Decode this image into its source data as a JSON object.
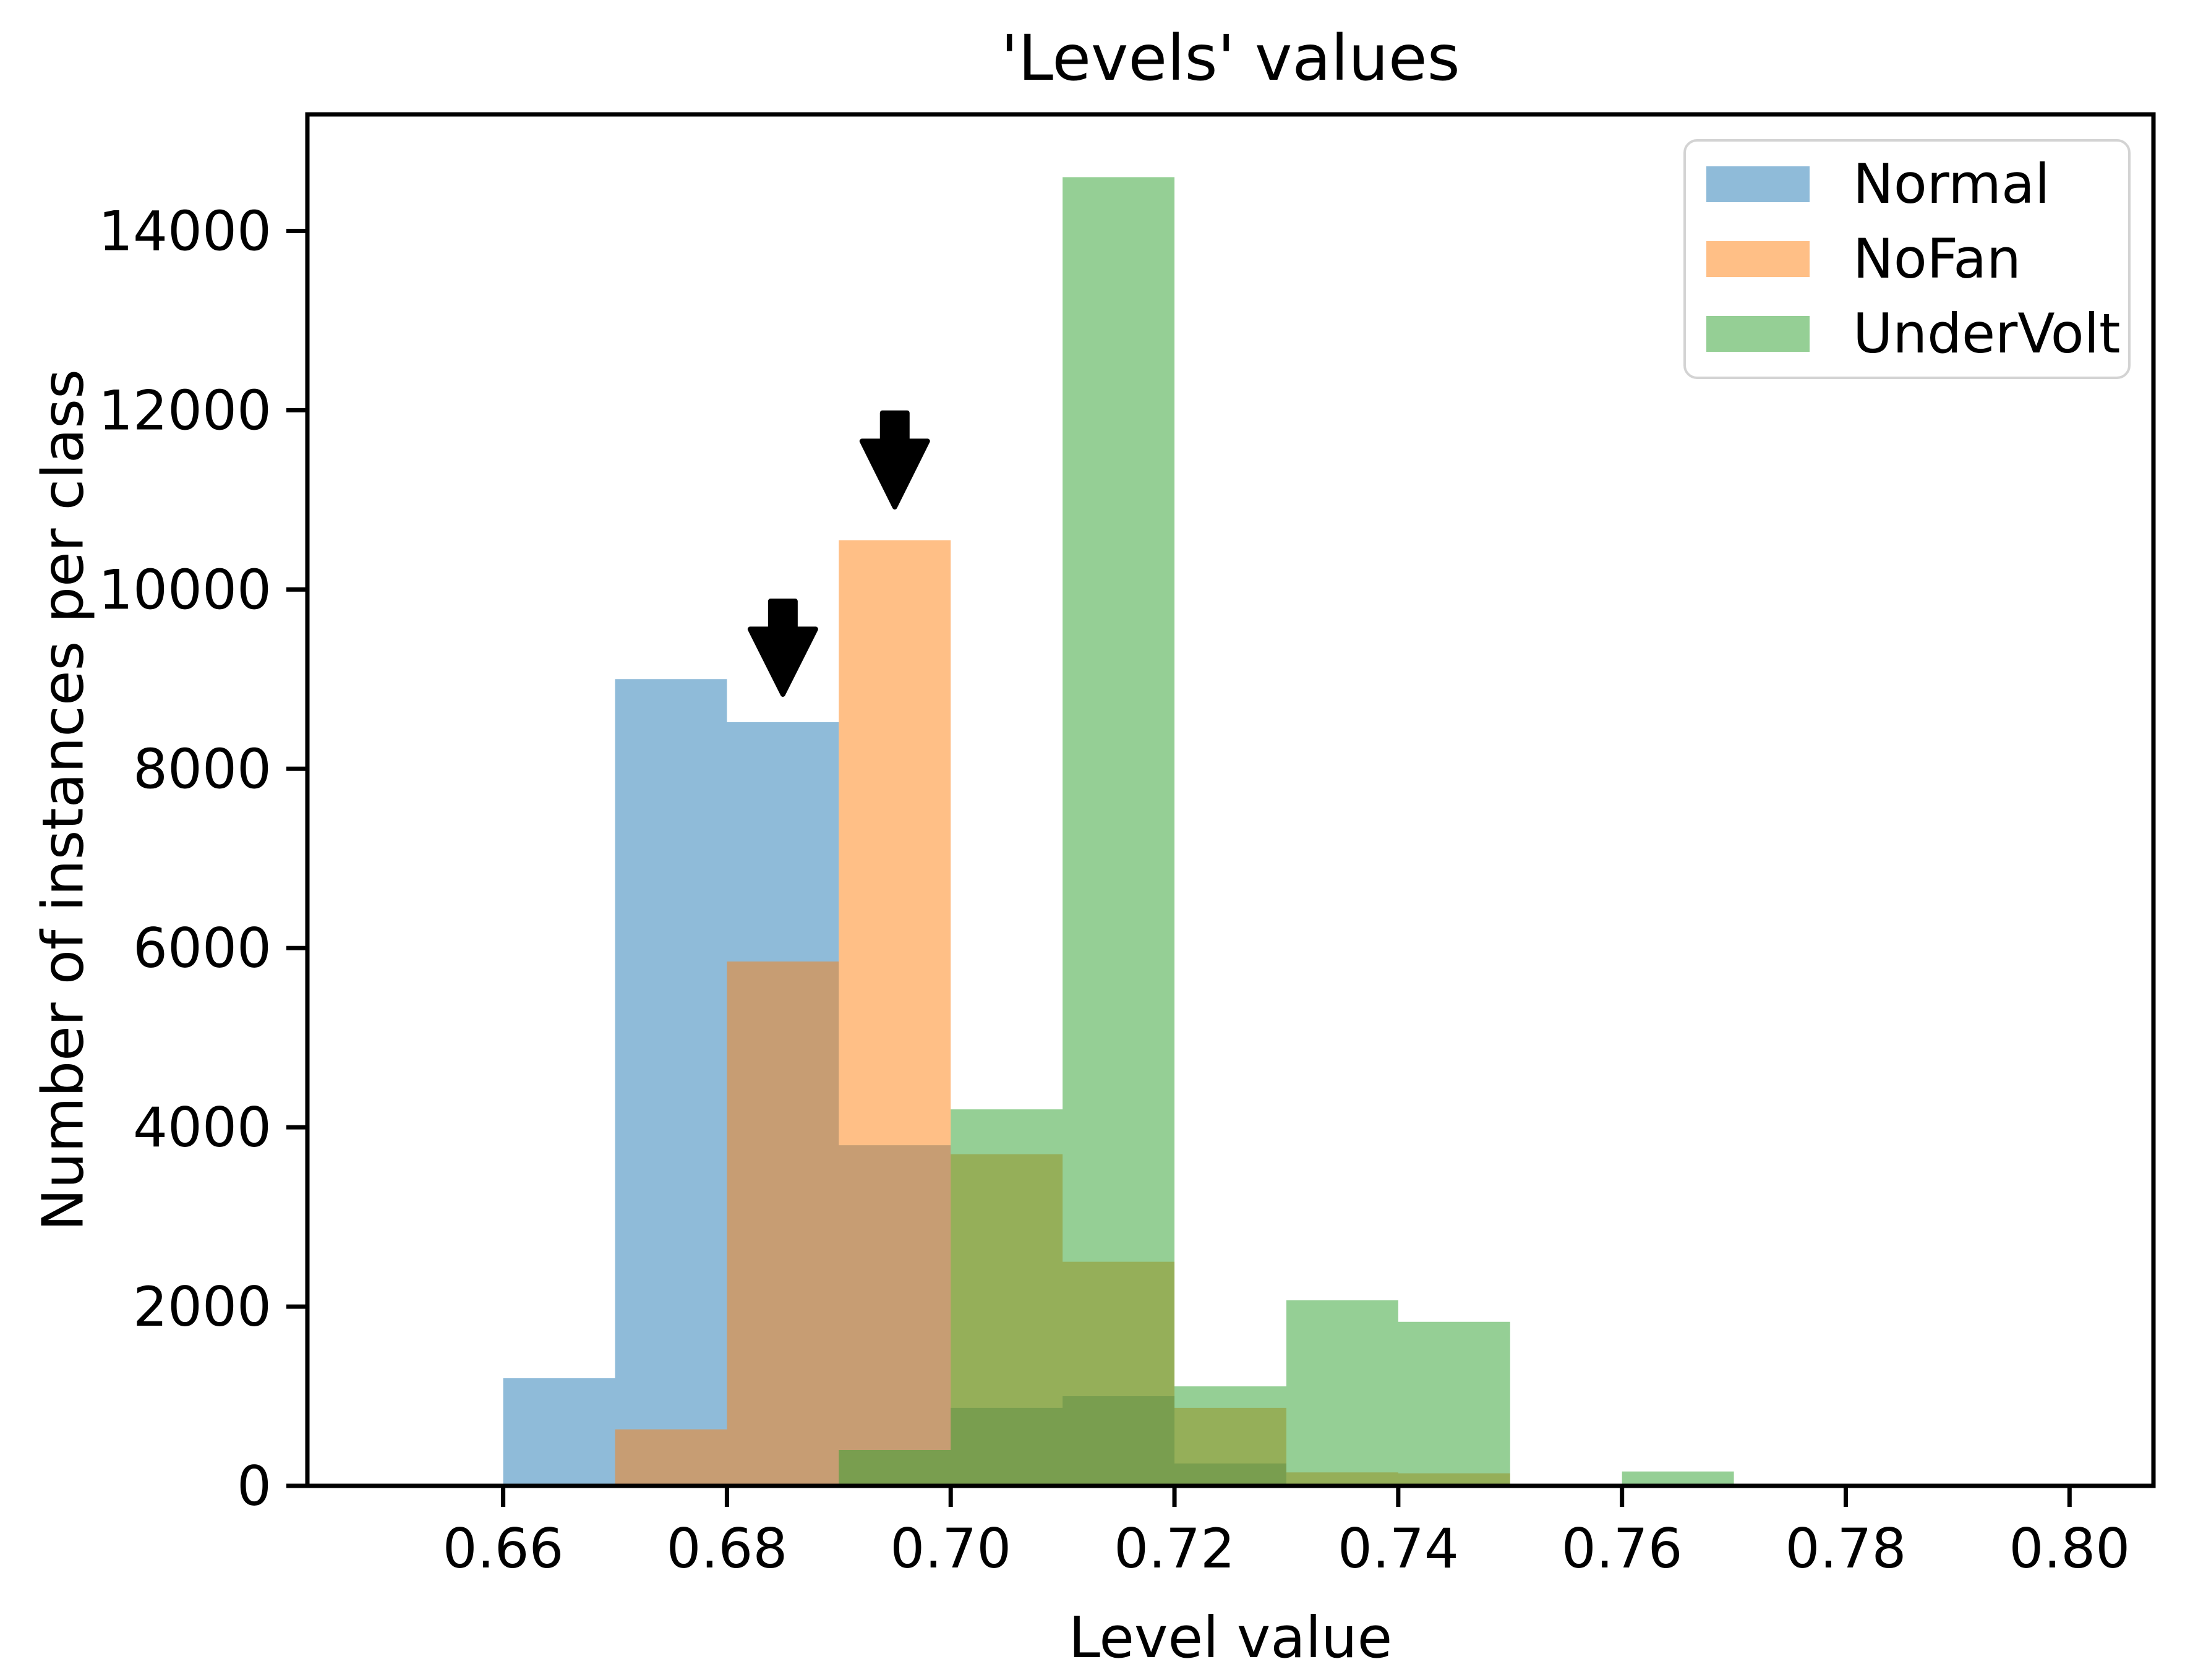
{
  "figure": {
    "title": "'Levels' values",
    "xlabel": "Level value",
    "ylabel": "Number of instances per class"
  },
  "chart_data": {
    "type": "histogram",
    "title": "'Levels' values",
    "xlabel": "Level value",
    "ylabel": "Number of instances per class",
    "background": "#ffffff",
    "axis_color": "#000000",
    "grid": false,
    "bin_width": 0.01,
    "bin_edges": [
      0.65,
      0.66,
      0.67,
      0.68,
      0.69,
      0.7,
      0.71,
      0.72,
      0.73,
      0.74,
      0.75,
      0.76,
      0.77
    ],
    "series": [
      {
        "name": "Normal",
        "color": "#1f77b4",
        "alpha": 0.5,
        "values": [
          0,
          1200,
          9000,
          8520,
          3800,
          870,
          1000,
          250,
          0,
          0,
          0,
          0
        ]
      },
      {
        "name": "NoFan",
        "color": "#ff7f0e",
        "alpha": 0.5,
        "values": [
          0,
          0,
          630,
          5850,
          10550,
          3700,
          2500,
          870,
          150,
          140,
          0,
          0
        ]
      },
      {
        "name": "UnderVolt",
        "color": "#2ca02c",
        "alpha": 0.5,
        "values": [
          0,
          0,
          0,
          0,
          400,
          4200,
          14600,
          1110,
          2070,
          1830,
          0,
          160
        ]
      }
    ],
    "xlim": [
      0.6425,
      0.8075
    ],
    "ylim": [
      0,
      15300
    ],
    "xticks": {
      "values": [
        0.66,
        0.68,
        0.7,
        0.72,
        0.74,
        0.76,
        0.78,
        0.8
      ],
      "labels": [
        "0.66",
        "0.68",
        "0.70",
        "0.72",
        "0.74",
        "0.76",
        "0.78",
        "0.80"
      ]
    },
    "yticks": {
      "values": [
        0,
        2000,
        4000,
        6000,
        8000,
        10000,
        12000,
        14000
      ],
      "labels": [
        "0",
        "2000",
        "4000",
        "6000",
        "8000",
        "10000",
        "12000",
        "14000"
      ]
    },
    "legend": {
      "position": "upper right",
      "entries": [
        "Normal",
        "NoFan",
        "UnderVolt"
      ]
    },
    "annotations": [
      {
        "type": "arrow-down",
        "x": 0.685,
        "y_tip": 8830,
        "y_top": 9870,
        "color": "#000000"
      },
      {
        "type": "arrow-down",
        "x": 0.695,
        "y_tip": 10920,
        "y_top": 11970,
        "color": "#000000"
      }
    ]
  }
}
